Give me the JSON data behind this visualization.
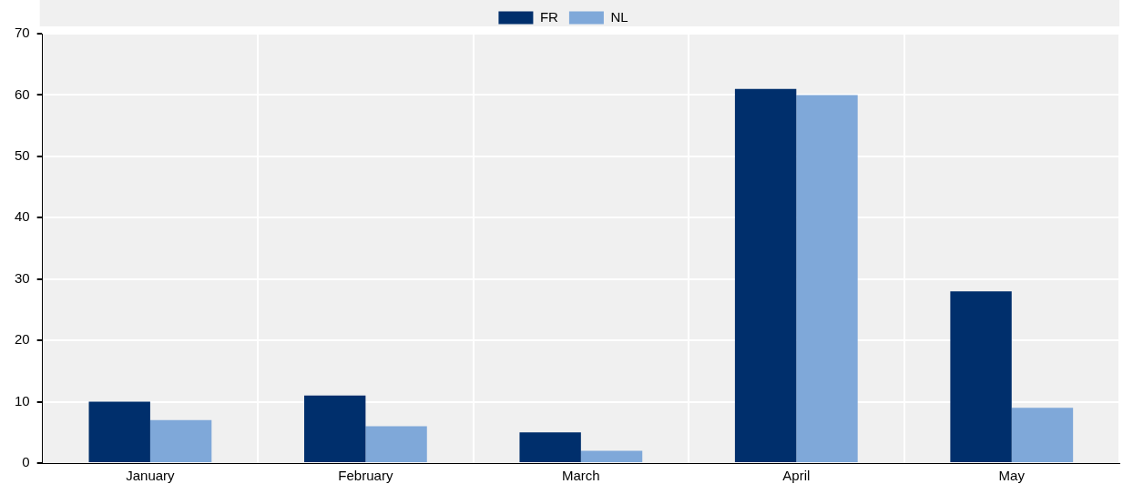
{
  "chart_data": {
    "type": "bar",
    "categories": [
      "January",
      "February",
      "March",
      "April",
      "May"
    ],
    "series": [
      {
        "name": "FR",
        "color": "#002f6c",
        "values": [
          10,
          11,
          5,
          61,
          28
        ]
      },
      {
        "name": "NL",
        "color": "#7fa8d9",
        "values": [
          7,
          6,
          2,
          60,
          9
        ]
      }
    ],
    "ylim": [
      0,
      70
    ],
    "yticks": [
      0,
      10,
      20,
      30,
      40,
      50,
      60,
      70
    ],
    "grid": true,
    "legend": "top"
  }
}
